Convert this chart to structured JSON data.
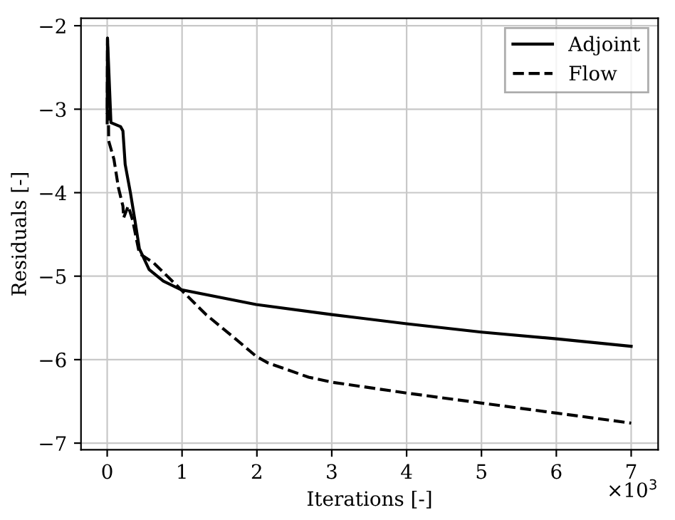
{
  "chart_data": {
    "type": "line",
    "xlabel": "Iterations [-]",
    "ylabel": "Residuals [-]",
    "xlim": [
      -0.35,
      7.36
    ],
    "ylim": [
      -7.08,
      -1.91
    ],
    "xticks": [
      0,
      1,
      2,
      3,
      4,
      5,
      6,
      7
    ],
    "yticks": [
      -7,
      -6,
      -5,
      -4,
      -3,
      -2
    ],
    "annotations": [
      "×10$^{3}$"
    ],
    "grid": true,
    "legend": "top right",
    "series": [
      {
        "name": "Adjoint",
        "color": "#000000",
        "line_style": "solid",
        "x": [
          0,
          0.004,
          0.05,
          0.18,
          0.21,
          0.24,
          0.31,
          0.37,
          0.43,
          0.56,
          0.75,
          0.98,
          1.99,
          3.0,
          4.0,
          5.0,
          6.0,
          7.0
        ],
        "values": [
          -3.04,
          -2.15,
          -3.16,
          -3.21,
          -3.26,
          -3.66,
          -4.0,
          -4.33,
          -4.67,
          -4.92,
          -5.06,
          -5.16,
          -5.34,
          -5.46,
          -5.57,
          -5.67,
          -5.75,
          -5.84
        ]
      },
      {
        "name": "Flow",
        "color": "#000000",
        "line_style": "dashed",
        "x": [
          0,
          0.004,
          0.02,
          0.09,
          0.15,
          0.21,
          0.22,
          0.28,
          0.34,
          0.43,
          0.62,
          0.94,
          1.32,
          1.7,
          1.99,
          2.15,
          2.69,
          3.0,
          4.0,
          5.0,
          6.0,
          7.0
        ],
        "values": [
          -3.18,
          -2.15,
          -3.38,
          -3.6,
          -3.94,
          -4.16,
          -4.3,
          -4.16,
          -4.33,
          -4.73,
          -4.84,
          -5.12,
          -5.46,
          -5.74,
          -5.96,
          -6.04,
          -6.21,
          -6.27,
          -6.4,
          -6.52,
          -6.64,
          -6.76
        ]
      }
    ]
  }
}
